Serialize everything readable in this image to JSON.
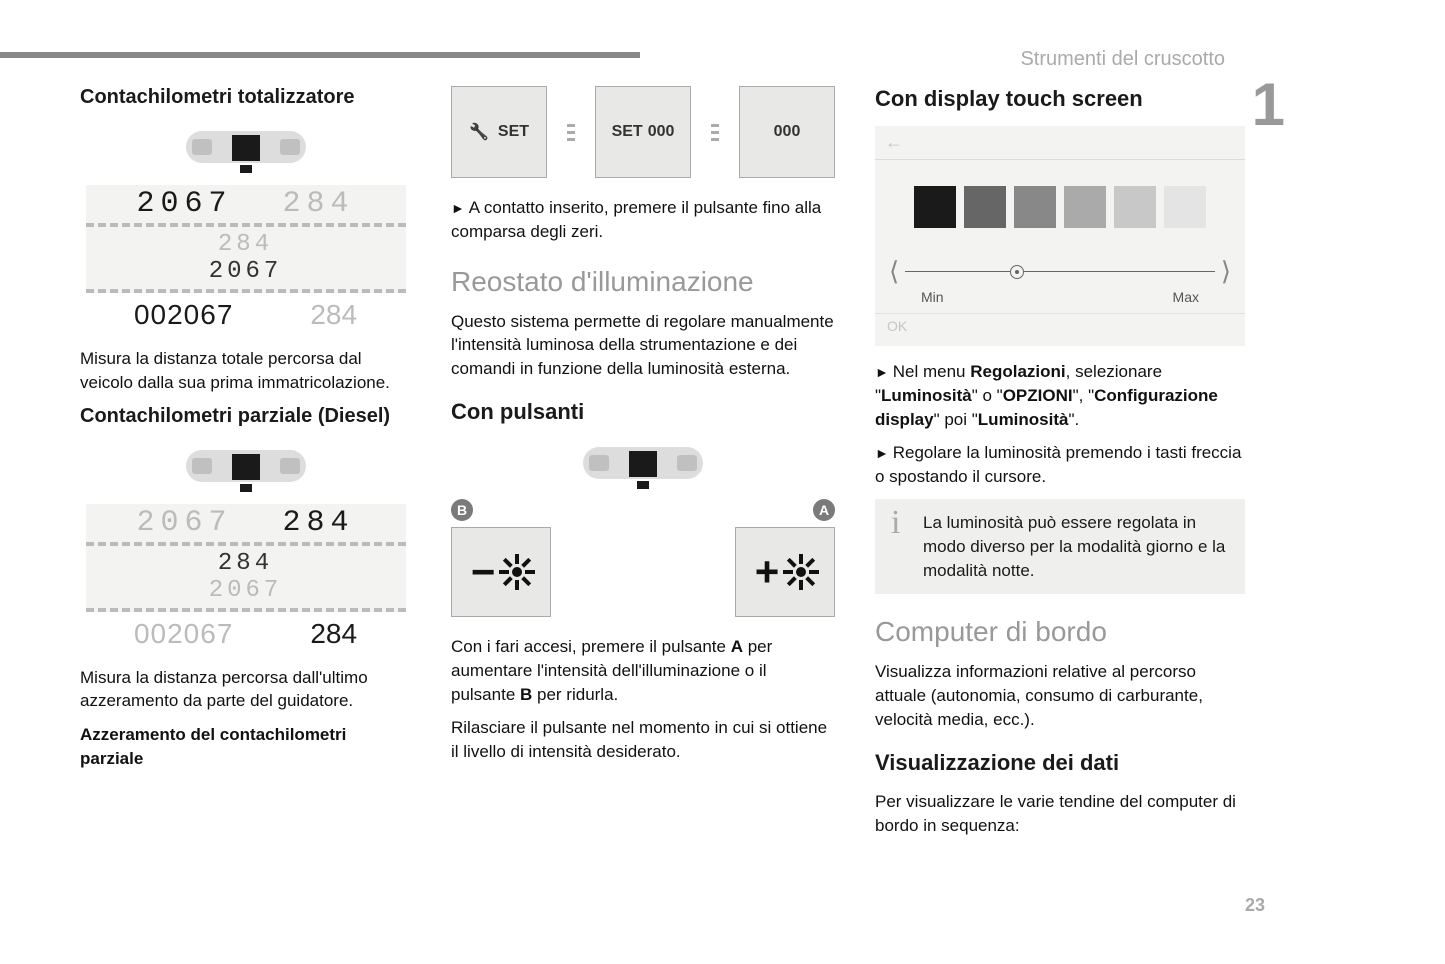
{
  "header": {
    "section": "Strumenti del cruscotto",
    "chapter": "1",
    "page_number": "23"
  },
  "col1": {
    "h1": "Contachilometri totalizzatore",
    "odo1": {
      "top_left": "2067",
      "top_right": "284",
      "mid1": "284",
      "mid2": "2067",
      "foot_left": "002067",
      "foot_right": "284"
    },
    "p1": "Misura la distanza totale percorsa dal veicolo dalla sua prima immatricolazione.",
    "h2": "Contachilometri parziale (Diesel)",
    "odo2": {
      "top_left": "2067",
      "top_right": "284",
      "mid1": "284",
      "mid2": "2067",
      "foot_left": "002067",
      "foot_right": "284"
    },
    "p2": "Misura la distanza percorsa dall'ultimo azzeramento da parte del guidatore.",
    "p3": "Azzeramento del contachilometri parziale"
  },
  "col2": {
    "setbuttons": {
      "b1": "SET",
      "b2a": "SET",
      "b2b": "000",
      "b3": "000"
    },
    "p1": "A contatto inserito, premere il pulsante fino alla comparsa degli zeri.",
    "h_grey": "Reostato d'illuminazione",
    "p2": "Questo sistema permette di regolare manualmente l'intensità luminosa della strumentazione e dei comandi in funzione della luminosità esterna.",
    "h_bold": "Con pulsanti",
    "markerB": "B",
    "markerA": "A",
    "p3a": "Con i fari accesi, premere il pulsante ",
    "p3b": "A",
    "p3c": " per aumentare l'intensità dell'illuminazione o il pulsante ",
    "p3d": "B",
    "p3e": " per ridurla.",
    "p4": "Rilasciare il pulsante nel momento in cui si ottiene il livello di intensità desiderato."
  },
  "col3": {
    "h1": "Con display touch screen",
    "touch": {
      "back": "←",
      "swatches": [
        "#1a1a1a",
        "#666666",
        "#888888",
        "#aaaaaa",
        "#c8c8c8",
        "#e4e4e4"
      ],
      "min": "Min",
      "max": "Max",
      "ok": "OK"
    },
    "p1a": "Nel menu ",
    "p1b": "Regolazioni",
    "p1c": ", selezionare \"",
    "p1d": "Luminosità",
    "p1e": "\" o \"",
    "p1f": "OPZIONI",
    "p1g": "\", \"",
    "p1h": "Configurazione display",
    "p1i": "\" poi \"",
    "p1j": "Luminosità",
    "p1k": "\".",
    "p2": "Regolare la luminosità premendo i tasti freccia o spostando il cursore.",
    "info1": "La luminosità può essere regolata in modo diverso per la modalità giorno e la modalità notte.",
    "h_grey": "Computer di bordo",
    "p3": "Visualizza informazioni relative al percorso attuale (autonomia, consumo di carburante, velocità media, ecc.).",
    "h_bold": "Visualizzazione dei dati",
    "p4": "Per visualizzare le varie tendine del computer di bordo in sequenza:"
  }
}
